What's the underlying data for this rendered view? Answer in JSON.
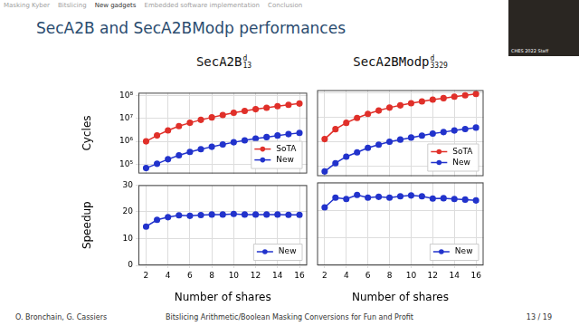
{
  "slide": {
    "nav": [
      "Masking Kyber",
      "Bitslicing",
      "New gadgets",
      "Embedded software implementation",
      "Conclusion"
    ],
    "current_section": "New gadgets",
    "title": "SecA2B and SecA2BModp performances",
    "overlay_caption": "CHES 2022 Staff",
    "footer": {
      "authors": "O. Bronchain, G. Cassiers",
      "title": "Bitslicing Arithmetic/Boolean Masking Conversions for Fun and Profit",
      "page": "13 / 19"
    }
  },
  "chart_data": [
    {
      "type": "line",
      "title": {
        "text": "SecA2B",
        "sup": "d",
        "sub": "13"
      },
      "ylabel": "Cycles",
      "x": [
        2,
        3,
        4,
        5,
        6,
        7,
        8,
        9,
        10,
        11,
        12,
        13,
        14,
        15,
        16
      ],
      "series": [
        {
          "name": "SoTA",
          "color": "#e0302a",
          "marker": "circle",
          "line_style": "solid",
          "values": [
            1000000,
            1800000,
            3000000,
            4600000,
            6400000,
            8600000,
            11000000,
            14000000,
            17500000,
            21000000,
            25000000,
            29000000,
            34000000,
            39000000,
            44000000
          ]
        },
        {
          "name": "New",
          "color": "#2233cc",
          "marker": "circle",
          "line_style": "solid",
          "values": [
            69000,
            106000,
            167000,
            246000,
            346000,
            457000,
            579000,
            737000,
            911000,
            1100000,
            1320000,
            1530000,
            1790000,
            2060000,
            2330000
          ]
        }
      ],
      "xlim": [
        1.3,
        16.7
      ],
      "xticks": [
        2,
        4,
        6,
        8,
        10,
        12,
        14,
        16
      ],
      "ylim": [
        40000,
        130000000
      ],
      "yticks": [
        {
          "value": 100000,
          "label": "10⁵"
        },
        {
          "value": 1000000,
          "label": "10⁶"
        },
        {
          "value": 10000000,
          "label": "10⁷"
        },
        {
          "value": 100000000,
          "label": "10⁸"
        }
      ],
      "log": "y",
      "grid": true,
      "legend": "lower right",
      "tick_labels": "y"
    },
    {
      "type": "line",
      "title": {
        "text": "SecA2BModp",
        "sup": "d",
        "sub": "3329"
      },
      "x": [
        2,
        3,
        4,
        5,
        6,
        7,
        8,
        9,
        10,
        11,
        12,
        13,
        14,
        15,
        16
      ],
      "series": [
        {
          "name": "SoTA",
          "color": "#e0302a",
          "marker": "circle",
          "line_style": "solid",
          "values": [
            1300000,
            3300000,
            6000000,
            9500000,
            14000000,
            19000000,
            25000000,
            31000000,
            38000000,
            45000000,
            53000000,
            61000000,
            70000000,
            80000000,
            90000000
          ]
        },
        {
          "name": "New",
          "color": "#2233cc",
          "marker": "circle",
          "line_style": "solid",
          "values": [
            62000,
            135000,
            250000,
            373000,
            571000,
            766000,
            1020000,
            1240000,
            1500000,
            1800000,
            2190000,
            2510000,
            2920000,
            3360000,
            3830000
          ]
        }
      ],
      "xlim": [
        1.3,
        16.7
      ],
      "xticks": [
        2,
        4,
        6,
        8,
        10,
        12,
        14,
        16
      ],
      "ylim": [
        40000,
        130000000
      ],
      "yticks": [
        {
          "value": 100000,
          "label": "10⁵"
        },
        {
          "value": 1000000,
          "label": "10⁶"
        },
        {
          "value": 10000000,
          "label": "10⁷"
        },
        {
          "value": 100000000,
          "label": "10⁸"
        }
      ],
      "log": "y",
      "grid": true,
      "legend": "lower right",
      "tick_labels": false
    },
    {
      "type": "line",
      "ylabel": "Speedup",
      "xlabel": "Number of shares",
      "x": [
        2,
        3,
        4,
        5,
        6,
        7,
        8,
        9,
        10,
        11,
        12,
        13,
        14,
        15,
        16
      ],
      "series": [
        {
          "name": "New",
          "color": "#2233cc",
          "marker": "circle",
          "line_style": "solid",
          "values": [
            14.5,
            17,
            18,
            18.7,
            18.5,
            18.8,
            19,
            19,
            19.2,
            19,
            19,
            19,
            19,
            18.9,
            18.9
          ]
        }
      ],
      "xlim": [
        1.3,
        16.7
      ],
      "xticks": [
        2,
        4,
        6,
        8,
        10,
        12,
        14,
        16
      ],
      "ylim": [
        0,
        30
      ],
      "yticks": [
        0,
        10,
        20,
        30
      ],
      "grid": true,
      "legend": "lower right"
    },
    {
      "type": "line",
      "xlabel": "Number of shares",
      "x": [
        2,
        3,
        4,
        5,
        6,
        7,
        8,
        9,
        10,
        11,
        12,
        13,
        14,
        15,
        16
      ],
      "series": [
        {
          "name": "New",
          "color": "#2233cc",
          "marker": "circle",
          "line_style": "solid",
          "values": [
            21,
            24.5,
            24,
            25.5,
            24.5,
            24.8,
            24.5,
            25,
            25.3,
            25,
            24.2,
            24.3,
            24,
            23.8,
            23.5
          ]
        }
      ],
      "xlim": [
        1.3,
        16.7
      ],
      "xticks": [
        2,
        4,
        6,
        8,
        10,
        12,
        14,
        16
      ],
      "ylim": [
        0,
        30
      ],
      "yticks": [
        0,
        10,
        20,
        30
      ],
      "grid": true,
      "legend": "lower right",
      "tick_labels": "x"
    }
  ]
}
